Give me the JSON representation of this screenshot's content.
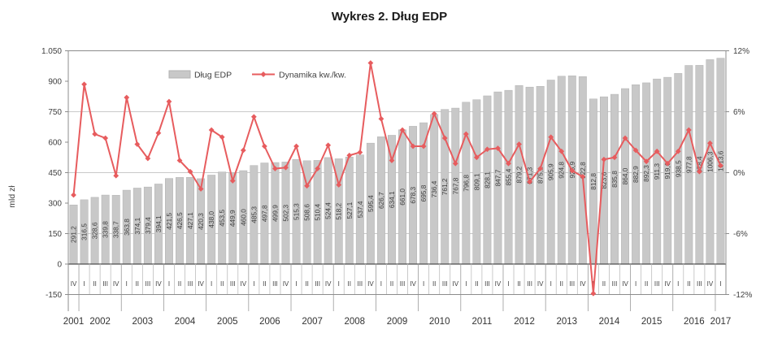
{
  "title": "Wykres 2. Dług EDP",
  "legend": {
    "bar_label": "Dług EDP",
    "line_label": "Dynamika kw./kw."
  },
  "y_left": {
    "axis_title": "mld zł",
    "ticks": [
      "1.050",
      "900",
      "750",
      "600",
      "450",
      "300",
      "150",
      "0",
      "-150"
    ],
    "tick_values": [
      1050,
      900,
      750,
      600,
      450,
      300,
      150,
      0,
      -150
    ]
  },
  "y_right": {
    "ticks": [
      "12%",
      "6%",
      "0%",
      "-6%",
      "-12%"
    ],
    "tick_values": [
      12,
      6,
      0,
      -6,
      -12
    ]
  },
  "colors": {
    "bar_fill": "#c8c8c8",
    "bar_edge": "#b2b2b2",
    "line": "#e75c5e",
    "grid": "#c9c9c9",
    "frame": "#8c8c8c",
    "baseline": "#4d4d4d",
    "separator": "#bdbdbd",
    "year_separator": "#9a9a9a",
    "tick_text": "#3f3f3f",
    "bar_label_text": "#3f3f3f"
  },
  "chart_data": {
    "type": "bar",
    "title": "Wykres 2. Dług EDP",
    "ylabel_left": "mld zł",
    "ylabel_right": "%",
    "ylim_left": [
      -150,
      1050
    ],
    "ylim_right": [
      -12,
      12
    ],
    "grid": "horizontal",
    "legend_position": "top-inside",
    "number_format": {
      "decimal_separator": ",",
      "bar_label_decimals": 1
    },
    "quarters": [
      "IV",
      "I",
      "II",
      "III",
      "IV",
      "I",
      "II",
      "III",
      "IV",
      "I",
      "II",
      "III",
      "IV",
      "I",
      "II",
      "III",
      "IV",
      "I",
      "II",
      "III",
      "IV",
      "I",
      "II",
      "III",
      "IV",
      "I",
      "II",
      "III",
      "IV",
      "I",
      "II",
      "III",
      "IV",
      "I",
      "II",
      "III",
      "IV",
      "I",
      "II",
      "III",
      "IV",
      "I",
      "II",
      "III",
      "IV",
      "I",
      "II",
      "III",
      "IV",
      "I",
      "II",
      "III",
      "IV",
      "I",
      "II",
      "III",
      "IV",
      "I",
      "II",
      "III",
      "IV",
      "I"
    ],
    "year_groups": [
      {
        "label": "2001",
        "count": 1
      },
      {
        "label": "2002",
        "count": 4
      },
      {
        "label": "2003",
        "count": 4
      },
      {
        "label": "2004",
        "count": 4
      },
      {
        "label": "2005",
        "count": 4
      },
      {
        "label": "2006",
        "count": 4
      },
      {
        "label": "2007",
        "count": 4
      },
      {
        "label": "2008",
        "count": 4
      },
      {
        "label": "2009",
        "count": 4
      },
      {
        "label": "2010",
        "count": 4
      },
      {
        "label": "2011",
        "count": 4
      },
      {
        "label": "2012",
        "count": 4
      },
      {
        "label": "2013",
        "count": 4
      },
      {
        "label": "2014",
        "count": 4
      },
      {
        "label": "2015",
        "count": 4
      },
      {
        "label": "2016",
        "count": 4
      },
      {
        "label": "2017",
        "count": 1
      }
    ],
    "series": [
      {
        "name": "Dług EDP",
        "type": "bar",
        "unit": "mld zł",
        "axis": "left",
        "values": [
          291.2,
          316.5,
          328.6,
          339.8,
          338.7,
          363.8,
          374.1,
          379.4,
          394.1,
          421.5,
          426.5,
          427.1,
          420.3,
          438.0,
          453.5,
          449.9,
          460.0,
          485.3,
          497.8,
          499.9,
          502.3,
          515.3,
          508.6,
          510.4,
          524.4,
          518.2,
          527.1,
          537.4,
          595.4,
          626.7,
          634.1,
          661.0,
          678.3,
          695.8,
          736.4,
          761.2,
          767.8,
          796.8,
          809.1,
          828.1,
          847.7,
          855.4,
          879.2,
          871.3,
          875.1,
          905.9,
          924.8,
          926.9,
          922.8,
          812.8,
          823.6,
          835.8,
          864.0,
          882.9,
          892.3,
          911.3,
          919.6,
          938.5,
          977.8,
          978.4,
          1006.3,
          1013.6
        ]
      },
      {
        "name": "Dynamika kw./kw.",
        "type": "line",
        "unit": "%",
        "axis": "right",
        "values": [
          -2.2,
          8.7,
          3.8,
          3.4,
          -0.3,
          7.4,
          2.8,
          1.4,
          3.9,
          7.0,
          1.2,
          0.1,
          -1.6,
          4.2,
          3.5,
          -0.8,
          2.2,
          5.5,
          2.6,
          0.4,
          0.5,
          2.6,
          -1.3,
          0.4,
          2.7,
          -1.2,
          1.7,
          2.0,
          10.8,
          5.3,
          1.2,
          4.2,
          2.6,
          2.6,
          5.8,
          3.4,
          0.9,
          3.8,
          1.5,
          2.3,
          2.4,
          0.9,
          2.8,
          -0.9,
          0.4,
          3.5,
          2.1,
          0.2,
          -0.4,
          -11.9,
          1.3,
          1.5,
          3.4,
          2.2,
          1.1,
          2.1,
          0.9,
          2.1,
          4.2,
          0.1,
          2.9,
          0.7
        ]
      }
    ]
  }
}
